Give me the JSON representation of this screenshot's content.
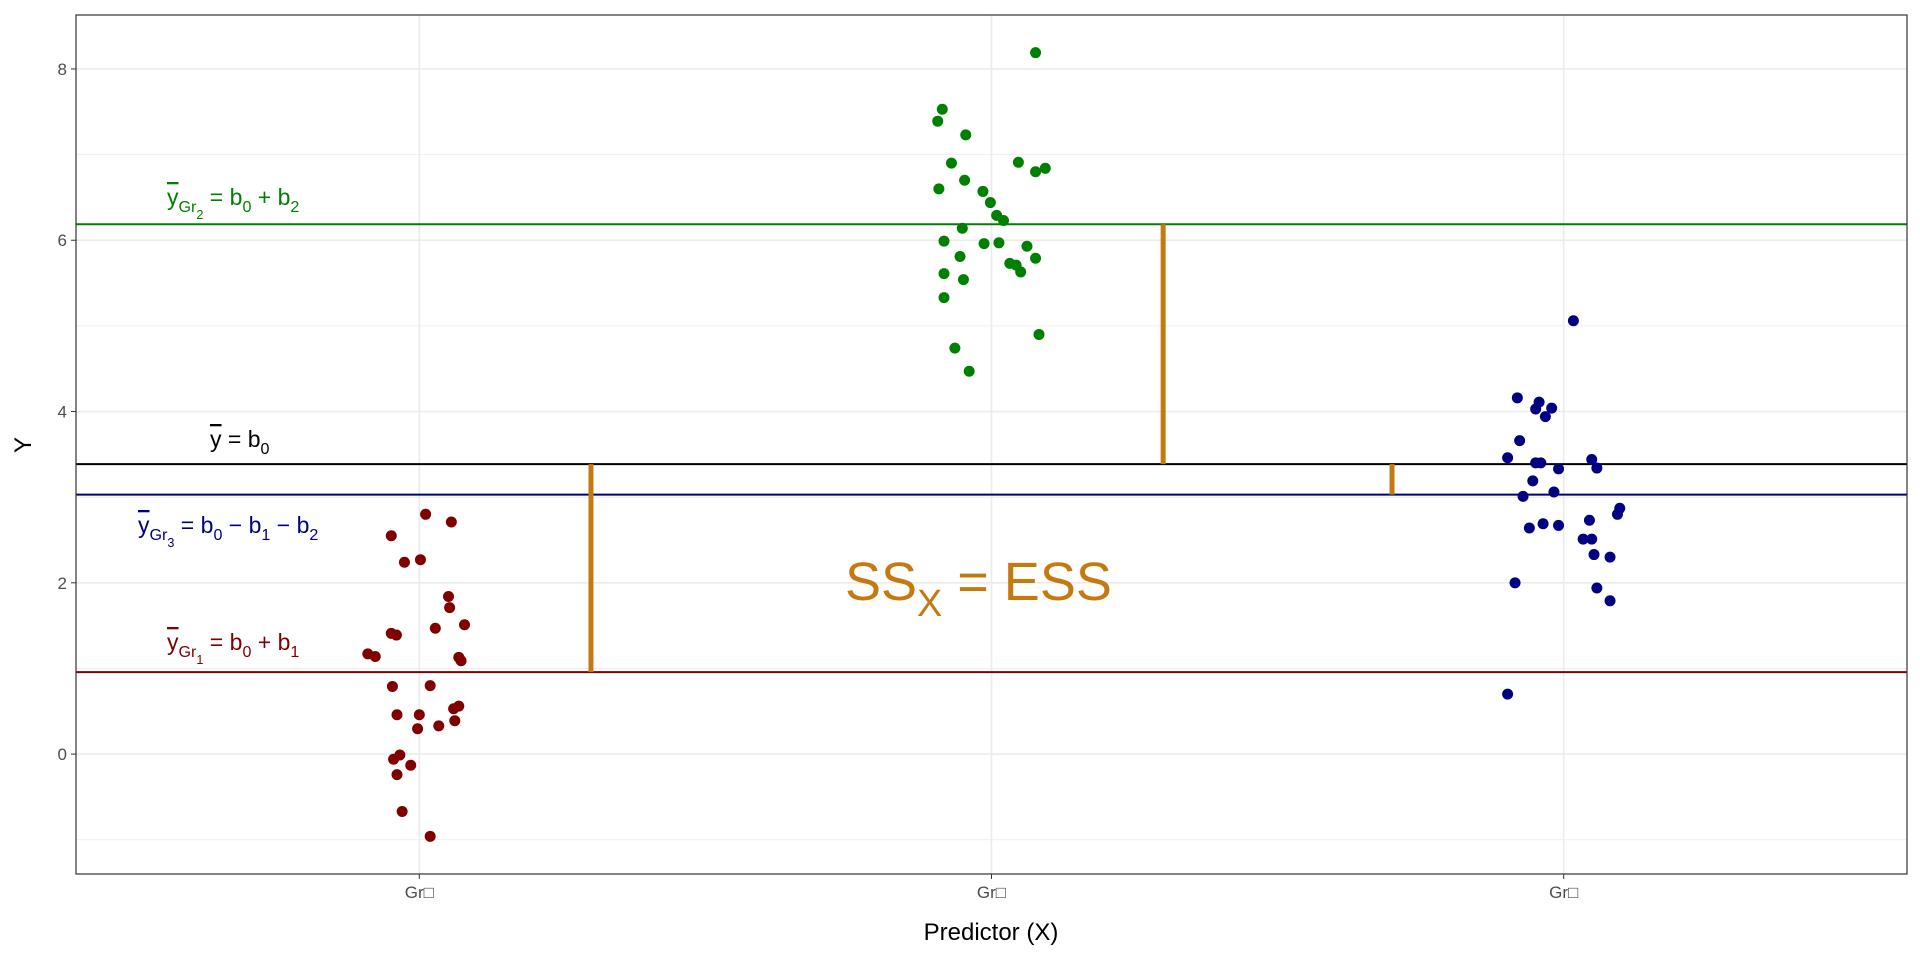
{
  "chart_data": {
    "type": "scatter",
    "xlabel": "Predictor (X)",
    "ylabel": "Y",
    "categories": [
      "Gr□",
      "Gr□",
      "Gr□"
    ],
    "xlim": [
      0.4,
      3.6
    ],
    "ylim": [
      -1.4,
      8.63
    ],
    "yticks": [
      0,
      2,
      4,
      6,
      8
    ],
    "grid": true,
    "series": [
      {
        "name": "Gr1",
        "color": "#800000",
        "points": [
          [
            0.997,
            0.296
          ],
          [
            1.011,
            2.8
          ],
          [
            1.056,
            2.71
          ],
          [
            0.951,
            2.55
          ],
          [
            1.002,
            2.27
          ],
          [
            0.974,
            2.24
          ],
          [
            1.051,
            1.84
          ],
          [
            1.053,
            1.71
          ],
          [
            1.079,
            1.51
          ],
          [
            1.028,
            1.47
          ],
          [
            0.951,
            1.41
          ],
          [
            0.96,
            1.39
          ],
          [
            0.91,
            1.17
          ],
          [
            0.923,
            1.14
          ],
          [
            1.069,
            1.13
          ],
          [
            1.073,
            1.09
          ],
          [
            0.953,
            0.79
          ],
          [
            1.019,
            0.8
          ],
          [
            1.069,
            0.56
          ],
          [
            1.06,
            0.53
          ],
          [
            0.961,
            0.46
          ],
          [
            1.0,
            0.46
          ],
          [
            1.062,
            0.39
          ],
          [
            1.034,
            0.33
          ],
          [
            0.966,
            -0.01
          ],
          [
            0.955,
            -0.06
          ],
          [
            0.985,
            -0.13
          ],
          [
            0.961,
            -0.24
          ],
          [
            0.97,
            -0.67
          ],
          [
            1.019,
            -0.96
          ]
        ]
      },
      {
        "name": "Gr2",
        "color": "#008000",
        "points": [
          [
            2.077,
            8.19
          ],
          [
            1.914,
            7.53
          ],
          [
            1.906,
            7.39
          ],
          [
            1.955,
            7.23
          ],
          [
            1.93,
            6.9
          ],
          [
            2.047,
            6.91
          ],
          [
            2.094,
            6.84
          ],
          [
            2.077,
            6.8
          ],
          [
            1.953,
            6.7
          ],
          [
            1.908,
            6.6
          ],
          [
            1.985,
            6.57
          ],
          [
            1.998,
            6.44
          ],
          [
            2.009,
            6.29
          ],
          [
            2.021,
            6.23
          ],
          [
            1.949,
            6.14
          ],
          [
            1.917,
            5.99
          ],
          [
            1.987,
            5.96
          ],
          [
            2.013,
            5.97
          ],
          [
            2.062,
            5.93
          ],
          [
            1.945,
            5.81
          ],
          [
            2.077,
            5.79
          ],
          [
            2.032,
            5.73
          ],
          [
            2.043,
            5.71
          ],
          [
            2.051,
            5.63
          ],
          [
            1.917,
            5.61
          ],
          [
            1.951,
            5.54
          ],
          [
            1.917,
            5.33
          ],
          [
            2.083,
            4.9
          ],
          [
            1.936,
            4.74
          ],
          [
            1.961,
            4.47
          ]
        ]
      },
      {
        "name": "Gr3",
        "color": "#000080",
        "points": [
          [
            3.017,
            5.06
          ],
          [
            2.919,
            4.16
          ],
          [
            2.957,
            4.11
          ],
          [
            2.951,
            4.03
          ],
          [
            2.979,
            4.04
          ],
          [
            2.968,
            3.94
          ],
          [
            2.923,
            3.66
          ],
          [
            2.902,
            3.46
          ],
          [
            3.049,
            3.44
          ],
          [
            2.951,
            3.4
          ],
          [
            2.96,
            3.4
          ],
          [
            3.058,
            3.34
          ],
          [
            2.991,
            3.33
          ],
          [
            2.946,
            3.19
          ],
          [
            2.983,
            3.06
          ],
          [
            2.929,
            3.01
          ],
          [
            3.098,
            2.87
          ],
          [
            3.094,
            2.8
          ],
          [
            3.045,
            2.73
          ],
          [
            2.964,
            2.69
          ],
          [
            2.991,
            2.67
          ],
          [
            2.94,
            2.64
          ],
          [
            3.034,
            2.51
          ],
          [
            3.049,
            2.51
          ],
          [
            3.053,
            2.33
          ],
          [
            3.081,
            2.3
          ],
          [
            2.915,
            2.0
          ],
          [
            3.058,
            1.94
          ],
          [
            3.081,
            1.79
          ],
          [
            2.902,
            0.7
          ]
        ]
      }
    ],
    "hlines": [
      {
        "name": "grand-mean",
        "y": 3.386,
        "color": "#000000"
      },
      {
        "name": "mean-gr2",
        "y": 6.186,
        "color": "#008000"
      },
      {
        "name": "mean-gr3",
        "y": 3.03,
        "color": "#000080"
      },
      {
        "name": "mean-gr1",
        "y": 0.957,
        "color": "#800000"
      }
    ],
    "segments": [
      {
        "x": 1.3,
        "y0": 0.957,
        "y1": 3.386
      },
      {
        "x": 2.3,
        "y0": 3.386,
        "y1": 6.186
      },
      {
        "x": 2.7,
        "y0": 3.03,
        "y1": 3.386
      }
    ],
    "segment_color": "#C57A10",
    "annotations": [
      {
        "name": "label-mean-gr2",
        "color": "#008000",
        "parts": [
          [
            "y",
            "over"
          ],
          [
            "Gr",
            "sub"
          ],
          [
            "2",
            "subsub"
          ],
          [
            " = b",
            "n"
          ],
          [
            "0",
            "sub"
          ],
          [
            " + b",
            "n"
          ],
          [
            "2",
            "sub"
          ]
        ]
      },
      {
        "name": "label-grand-mean",
        "color": "#000000",
        "parts": [
          [
            "y",
            "over"
          ],
          [
            " = b",
            "n"
          ],
          [
            "0",
            "sub"
          ]
        ]
      },
      {
        "name": "label-mean-gr3",
        "color": "#000080",
        "parts": [
          [
            "y",
            "over"
          ],
          [
            "Gr",
            "sub"
          ],
          [
            "3",
            "subsub"
          ],
          [
            " = b",
            "n"
          ],
          [
            "0",
            "sub"
          ],
          [
            " − b",
            "n"
          ],
          [
            "1",
            "sub"
          ],
          [
            " − b",
            "n"
          ],
          [
            "2",
            "sub"
          ]
        ]
      },
      {
        "name": "label-mean-gr1",
        "color": "#800000",
        "parts": [
          [
            "y",
            "over"
          ],
          [
            "Gr",
            "sub"
          ],
          [
            "1",
            "subsub"
          ],
          [
            " = b",
            "n"
          ],
          [
            "0",
            "sub"
          ],
          [
            " + b",
            "n"
          ],
          [
            "1",
            "sub"
          ]
        ]
      }
    ],
    "big_label": {
      "parts": [
        [
          "SS",
          "n"
        ],
        [
          "X",
          "sub"
        ],
        [
          " = ESS",
          "n"
        ]
      ]
    }
  }
}
